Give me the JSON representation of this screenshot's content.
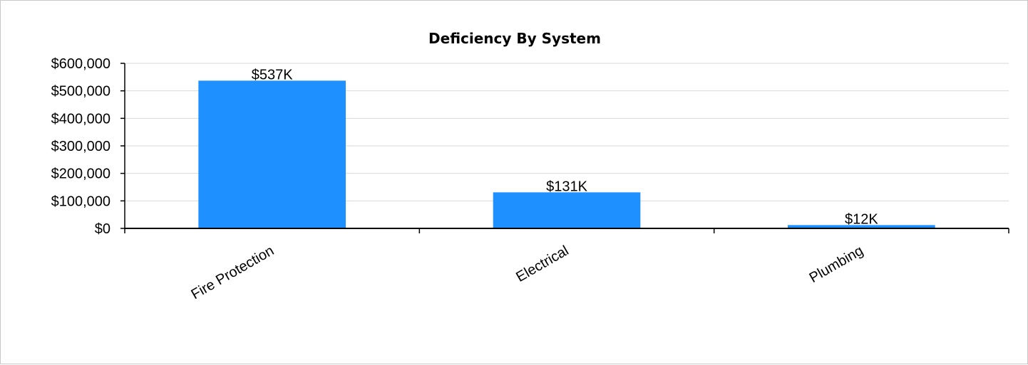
{
  "chart_data": {
    "type": "bar",
    "title": "Deficiency By System",
    "xlabel": "",
    "ylabel": "",
    "categories": [
      "Fire Protection",
      "Electrical",
      "Plumbing"
    ],
    "values": [
      537000,
      131000,
      12000
    ],
    "data_labels": [
      "$537K",
      "$131K",
      "$12K"
    ],
    "ylim": [
      0,
      600000
    ],
    "y_ticks": [
      0,
      100000,
      200000,
      300000,
      400000,
      500000,
      600000
    ],
    "y_tick_labels": [
      "$0",
      "$100,000",
      "$200,000",
      "$300,000",
      "$400,000",
      "$500,000",
      "$600,000"
    ],
    "grid": true,
    "legend": "none",
    "bar_color": "#1e90ff",
    "grid_color": "#d9d9d9"
  }
}
